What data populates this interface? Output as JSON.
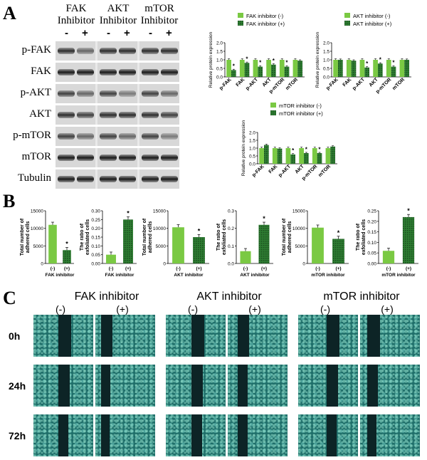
{
  "panels": {
    "a": "A",
    "b": "B",
    "c": "C"
  },
  "blot": {
    "columns": [
      {
        "line1": "FAK",
        "line2": "Inhibitor"
      },
      {
        "line1": "AKT",
        "line2": "Inhibitor"
      },
      {
        "line1": "mTOR",
        "line2": "Inhibitor"
      }
    ],
    "minus": "-",
    "plus": "+",
    "rows": [
      "p-FAK",
      "FAK",
      "p-AKT",
      "AKT",
      "p-mTOR",
      "mTOR",
      "Tubulin"
    ]
  },
  "colors": {
    "light_green": "#7ac943",
    "dark_green": "#2e7d32",
    "black": "#000000"
  },
  "chart_data": [
    {
      "type": "bar",
      "ylabel": "Relative protein expression",
      "categories": [
        "p-FAK",
        "FAK",
        "p-AKT",
        "AKT",
        "p-mTOR",
        "mTOR"
      ],
      "series": [
        {
          "name": "FAK inhibitor (-)",
          "values": [
            1.0,
            1.0,
            1.0,
            1.0,
            1.0,
            1.0
          ]
        },
        {
          "name": "FAK inhibitor (+)",
          "values": [
            0.4,
            0.82,
            0.6,
            0.72,
            0.6,
            0.95
          ]
        }
      ],
      "significant": [
        "*",
        "*",
        "*",
        "*",
        "*",
        ""
      ],
      "yticks": [
        "0.0",
        "0.5",
        "1.0",
        "1.5",
        "2.0"
      ],
      "ylim": [
        0,
        2.0
      ]
    },
    {
      "type": "bar",
      "ylabel": "Relative protein expression",
      "categories": [
        "p-FAK",
        "FAK",
        "p-AKT",
        "AKT",
        "p-mTOR",
        "mTOR"
      ],
      "series": [
        {
          "name": "AKT inhibitor (-)",
          "values": [
            1.0,
            1.0,
            1.0,
            1.0,
            1.0,
            1.0
          ]
        },
        {
          "name": "AKT inhibitor (+)",
          "values": [
            1.0,
            0.95,
            0.55,
            0.78,
            0.6,
            1.0
          ]
        }
      ],
      "significant": [
        "",
        "",
        "*",
        "*",
        "*",
        ""
      ],
      "yticks": [
        "0.0",
        "0.5",
        "1.0",
        "1.5",
        "2.0"
      ],
      "ylim": [
        0,
        2.0
      ]
    },
    {
      "type": "bar",
      "ylabel": "Relative protein expression",
      "categories": [
        "p-FAK",
        "FAK",
        "p-AKT",
        "AKT",
        "p-mTOR",
        "mTOR"
      ],
      "series": [
        {
          "name": "mTOR inhibitor (-)",
          "values": [
            1.0,
            1.0,
            1.0,
            1.0,
            1.0,
            1.0
          ]
        },
        {
          "name": "mTOR inhibitor (+)",
          "values": [
            1.2,
            0.97,
            0.6,
            0.68,
            0.68,
            1.1
          ]
        }
      ],
      "significant": [
        "",
        "",
        "*",
        "*",
        "*",
        ""
      ],
      "yticks": [
        "0.0",
        "0.5",
        "1.0",
        "1.5",
        "2.0"
      ],
      "ylim": [
        0,
        2.0
      ]
    },
    {
      "type": "bar",
      "ylabel": "Total number of adhered cells",
      "xlabel": "FAK inhibitor",
      "categories": [
        "(-)",
        "(+)"
      ],
      "values": [
        11000,
        3800
      ],
      "significant": [
        "",
        "*"
      ],
      "yticks": [
        "0",
        "5000",
        "10000",
        "15000"
      ],
      "ylim": [
        0,
        15000
      ]
    },
    {
      "type": "bar",
      "ylabel": "The ratio of exfoliated cells",
      "xlabel": "FAK inhibitor",
      "categories": [
        "(-)",
        "(+)"
      ],
      "values": [
        0.05,
        0.25
      ],
      "significant": [
        "",
        "*"
      ],
      "yticks": [
        "0.00",
        "0.05",
        "0.10",
        "0.15",
        "0.20",
        "0.25",
        "0.30"
      ],
      "ylim": [
        0,
        0.3
      ]
    },
    {
      "type": "bar",
      "ylabel": "Total number of adhered cells",
      "xlabel": "AKT inhibitor",
      "categories": [
        "(-)",
        "(+)"
      ],
      "values": [
        10300,
        7500
      ],
      "significant": [
        "",
        "*"
      ],
      "yticks": [
        "0",
        "5000",
        "10000",
        "15000"
      ],
      "ylim": [
        0,
        15000
      ]
    },
    {
      "type": "bar",
      "ylabel": "The ratio of exfoliated cells",
      "xlabel": "AKT inhibitor",
      "categories": [
        "(-)",
        "(+)"
      ],
      "values": [
        0.07,
        0.22
      ],
      "significant": [
        "",
        "*"
      ],
      "yticks": [
        "0.0",
        "0.1",
        "0.2",
        "0.3"
      ],
      "ylim": [
        0,
        0.3
      ]
    },
    {
      "type": "bar",
      "ylabel": "Total number of adhered cells",
      "xlabel": "mTOR inhibitor",
      "categories": [
        "(-)",
        "(+)"
      ],
      "values": [
        10200,
        7000
      ],
      "significant": [
        "",
        "*"
      ],
      "yticks": [
        "0",
        "5000",
        "10000",
        "15000"
      ],
      "ylim": [
        0,
        15000
      ]
    },
    {
      "type": "bar",
      "ylabel": "The ratio of exfoliated cells",
      "xlabel": "mTOR inhibitor",
      "categories": [
        "(-)",
        "(+)"
      ],
      "values": [
        0.06,
        0.22
      ],
      "significant": [
        "",
        "*"
      ],
      "yticks": [
        "0.00",
        "0.05",
        "0.10",
        "0.15",
        "0.20",
        "0.25"
      ],
      "ylim": [
        0,
        0.25
      ]
    }
  ],
  "wound": {
    "groups": [
      "FAK inhibitor",
      "AKT inhibitor",
      "mTOR inhibitor"
    ],
    "conditions": [
      "(-)",
      "(+)"
    ],
    "timepoints": [
      "0h",
      "24h",
      "72h"
    ]
  }
}
